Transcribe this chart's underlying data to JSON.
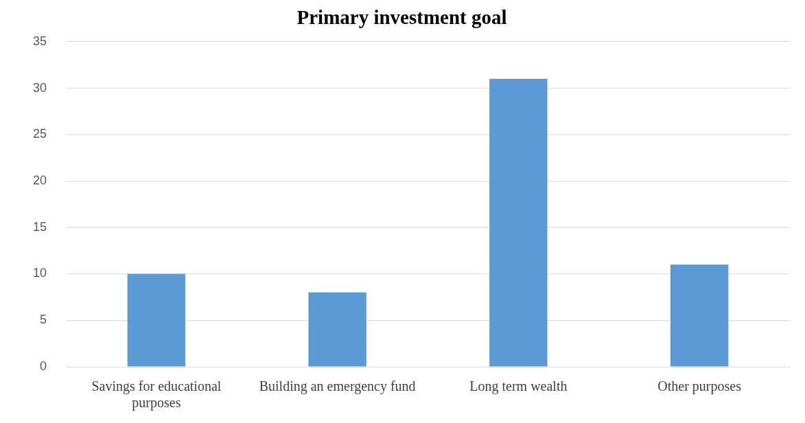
{
  "chart_data": {
    "type": "bar",
    "title": "Primary investment goal",
    "categories": [
      "Savings for educational purposes",
      "Building an emergency fund",
      "Long term wealth",
      "Other purposes"
    ],
    "values": [
      10,
      8,
      31,
      11
    ],
    "color": "#5b9bd5",
    "ylim": [
      0,
      35
    ],
    "yticks": [
      0,
      5,
      10,
      15,
      20,
      25,
      30,
      35
    ],
    "grid": "y"
  }
}
